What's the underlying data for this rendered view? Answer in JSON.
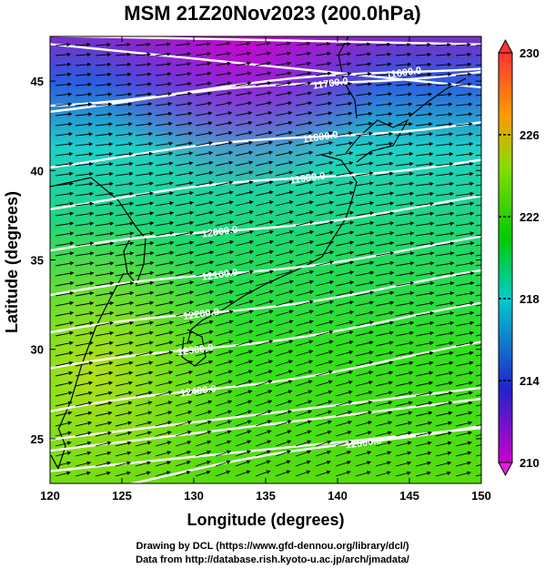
{
  "title": "MSM 21Z20Nov2023 (200.0hPa)",
  "credits": {
    "line1": "Drawing by DCL (https://www.gfd-dennou.org/library/dcl/)",
    "line2": "Data from http://database.rish.kyoto-u.ac.jp/arch/jmadata/"
  },
  "axes": {
    "xlabel": "Longitude (degrees)",
    "ylabel": "Latitude  (degrees)",
    "xlim": [
      120,
      150
    ],
    "ylim": [
      22.5,
      47.5
    ],
    "xticks": [
      120,
      125,
      130,
      135,
      140,
      145,
      150
    ],
    "yticks": [
      25,
      30,
      35,
      40,
      45
    ]
  },
  "colorbar": {
    "min": 210,
    "max": 230,
    "ticks": [
      210,
      214,
      218,
      222,
      226,
      230
    ],
    "colors": [
      "#cc00cc",
      "#2222cc",
      "#00cccc",
      "#00cc00",
      "#bbdd00",
      "#ff6600",
      "#ff3333"
    ]
  },
  "contour_labels": [
    {
      "text": "11600.0",
      "lon": 144.6,
      "lat": 45.5
    },
    {
      "text": "11700.0",
      "lon": 139.5,
      "lat": 44.9
    },
    {
      "text": "11800.0",
      "lon": 138.8,
      "lat": 41.9
    },
    {
      "text": "11900.0",
      "lon": 137.9,
      "lat": 39.6
    },
    {
      "text": "12000.0",
      "lon": 131.8,
      "lat": 36.6
    },
    {
      "text": "12100.0",
      "lon": 131.8,
      "lat": 34.2
    },
    {
      "text": "12200.0",
      "lon": 130.5,
      "lat": 32.0
    },
    {
      "text": "12300.0",
      "lon": 130.1,
      "lat": 30.0
    },
    {
      "text": "12400.0",
      "lon": 130.3,
      "lat": 27.7
    },
    {
      "text": "12500.0",
      "lon": 141.8,
      "lat": 24.8
    }
  ]
}
